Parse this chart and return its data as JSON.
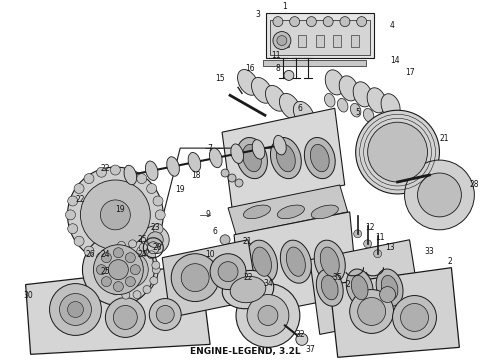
{
  "background_color": "#ffffff",
  "caption_text": "ENGINE-LEGEND, 3.2L",
  "caption_fontsize": 6.5,
  "caption_fontweight": "bold",
  "fig_width": 4.9,
  "fig_height": 3.6,
  "dpi": 100,
  "line_color": "#1a1a1a",
  "gray_light": "#e8e8e8",
  "gray_mid": "#c8c8c8",
  "gray_dark": "#a0a0a0",
  "gray_very_dark": "#707070"
}
